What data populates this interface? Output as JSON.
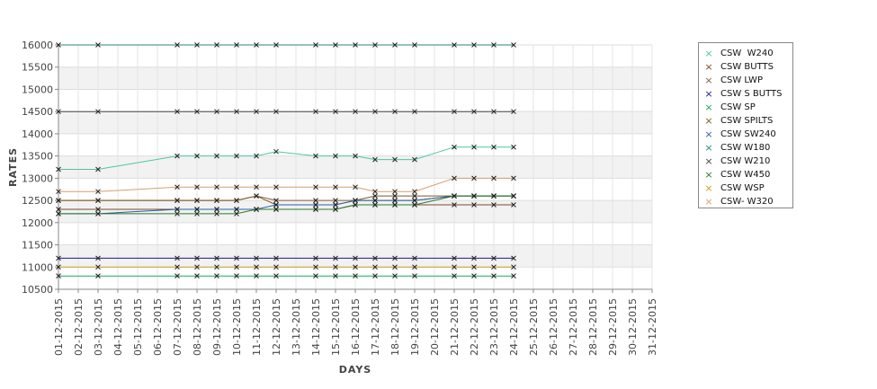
{
  "chart_data": {
    "type": "line",
    "xlabel": "DAYS",
    "ylabel": "RATES",
    "ylim": [
      10500,
      16000
    ],
    "yticks": [
      10500,
      11000,
      11500,
      12000,
      12500,
      13000,
      13500,
      14000,
      14500,
      15000,
      15500,
      16000
    ],
    "x": [
      "01-12-2015",
      "02-12-2015",
      "03-12-2015",
      "04-12-2015",
      "05-12-2015",
      "06-12-2015",
      "07-12-2015",
      "08-12-2015",
      "09-12-2015",
      "10-12-2015",
      "11-12-2015",
      "12-12-2015",
      "13-12-2015",
      "14-12-2015",
      "15-12-2015",
      "16-12-2015",
      "17-12-2015",
      "18-12-2015",
      "19-12-2015",
      "20-12-2015",
      "21-12-2015",
      "22-12-2015",
      "23-12-2015",
      "24-12-2015",
      "25-12-2015",
      "26-12-2015",
      "27-12-2015",
      "28-12-2015",
      "29-12-2015",
      "30-12-2015",
      "31-12-2015"
    ],
    "grid": true,
    "legend_position": "right",
    "series": [
      {
        "name": "CSW  W240",
        "color": "#4dc7a0",
        "x": [
          "01-12-2015",
          "03-12-2015",
          "07-12-2015",
          "08-12-2015",
          "09-12-2015",
          "10-12-2015",
          "11-12-2015",
          "12-12-2015",
          "14-12-2015",
          "15-12-2015",
          "16-12-2015",
          "17-12-2015",
          "18-12-2015",
          "19-12-2015",
          "21-12-2015",
          "22-12-2015",
          "23-12-2015",
          "24-12-2015"
        ],
        "values": [
          13200,
          13200,
          13500,
          13500,
          13500,
          13500,
          13500,
          13600,
          13500,
          13500,
          13500,
          13420,
          13420,
          13420,
          13700,
          13700,
          13700,
          13700
        ]
      },
      {
        "name": "CSW BUTTS",
        "color": "#7a4a2a",
        "x": [
          "01-12-2015",
          "03-12-2015",
          "07-12-2015",
          "08-12-2015",
          "09-12-2015",
          "10-12-2015",
          "11-12-2015",
          "12-12-2015",
          "14-12-2015",
          "15-12-2015",
          "16-12-2015",
          "17-12-2015",
          "18-12-2015",
          "19-12-2015",
          "21-12-2015",
          "22-12-2015",
          "23-12-2015",
          "24-12-2015"
        ],
        "values": [
          12300,
          12300,
          12300,
          12300,
          12300,
          12300,
          12300,
          12300,
          12300,
          12300,
          12400,
          12400,
          12400,
          12400,
          12400,
          12400,
          12400,
          12400
        ]
      },
      {
        "name": "CSW LWP",
        "color": "#8b5a3a",
        "x": [
          "01-12-2015",
          "03-12-2015",
          "07-12-2015",
          "08-12-2015",
          "09-12-2015",
          "10-12-2015",
          "11-12-2015",
          "12-12-2015",
          "14-12-2015",
          "15-12-2015",
          "16-12-2015",
          "17-12-2015",
          "18-12-2015",
          "19-12-2015",
          "21-12-2015",
          "22-12-2015",
          "23-12-2015",
          "24-12-2015"
        ],
        "values": [
          12500,
          12500,
          12500,
          12500,
          12500,
          12500,
          12600,
          12500,
          12500,
          12500,
          12500,
          12500,
          12500,
          12500,
          12600,
          12600,
          12600,
          12600
        ]
      },
      {
        "name": "CSW S BUTTS",
        "color": "#1a1a8a",
        "x": [
          "01-12-2015",
          "03-12-2015",
          "07-12-2015",
          "08-12-2015",
          "09-12-2015",
          "10-12-2015",
          "11-12-2015",
          "12-12-2015",
          "14-12-2015",
          "15-12-2015",
          "16-12-2015",
          "17-12-2015",
          "18-12-2015",
          "19-12-2015",
          "21-12-2015",
          "22-12-2015",
          "23-12-2015",
          "24-12-2015"
        ],
        "values": [
          11200,
          11200,
          11200,
          11200,
          11200,
          11200,
          11200,
          11200,
          11200,
          11200,
          11200,
          11200,
          11200,
          11200,
          11200,
          11200,
          11200,
          11200
        ]
      },
      {
        "name": "CSW SP",
        "color": "#1aaa5a",
        "x": [
          "01-12-2015",
          "03-12-2015",
          "07-12-2015",
          "08-12-2015",
          "09-12-2015",
          "10-12-2015",
          "11-12-2015",
          "12-12-2015",
          "14-12-2015",
          "15-12-2015",
          "16-12-2015",
          "17-12-2015",
          "18-12-2015",
          "19-12-2015",
          "21-12-2015",
          "22-12-2015",
          "23-12-2015",
          "24-12-2015"
        ],
        "values": [
          10800,
          10800,
          10800,
          10800,
          10800,
          10800,
          10800,
          10800,
          10800,
          10800,
          10800,
          10800,
          10800,
          10800,
          10800,
          10800,
          10800,
          10800
        ]
      },
      {
        "name": "CSW SPILTS",
        "color": "#7a5a20",
        "x": [
          "01-12-2015",
          "03-12-2015",
          "07-12-2015",
          "08-12-2015",
          "09-12-2015",
          "10-12-2015",
          "11-12-2015",
          "12-12-2015",
          "14-12-2015",
          "15-12-2015",
          "16-12-2015",
          "17-12-2015",
          "18-12-2015",
          "19-12-2015",
          "21-12-2015",
          "22-12-2015",
          "23-12-2015",
          "24-12-2015"
        ],
        "values": [
          12500,
          12500,
          12500,
          12500,
          12500,
          12500,
          12600,
          12400,
          12400,
          12400,
          12500,
          12600,
          12600,
          12600,
          12600,
          12600,
          12600,
          12600
        ]
      },
      {
        "name": "CSW SW240",
        "color": "#2a5fa8",
        "x": [
          "01-12-2015",
          "03-12-2015",
          "07-12-2015",
          "08-12-2015",
          "09-12-2015",
          "10-12-2015",
          "11-12-2015",
          "12-12-2015",
          "14-12-2015",
          "15-12-2015",
          "16-12-2015",
          "17-12-2015",
          "18-12-2015",
          "19-12-2015",
          "21-12-2015",
          "22-12-2015",
          "23-12-2015",
          "24-12-2015"
        ],
        "values": [
          12200,
          12200,
          12300,
          12300,
          12300,
          12300,
          12300,
          12400,
          12400,
          12400,
          12500,
          12500,
          12500,
          12500,
          12600,
          12600,
          12600,
          12600
        ]
      },
      {
        "name": "CSW W180",
        "color": "#2a8a6a",
        "x": [
          "01-12-2015",
          "03-12-2015",
          "07-12-2015",
          "08-12-2015",
          "09-12-2015",
          "10-12-2015",
          "11-12-2015",
          "12-12-2015",
          "14-12-2015",
          "15-12-2015",
          "16-12-2015",
          "17-12-2015",
          "18-12-2015",
          "19-12-2015",
          "21-12-2015",
          "22-12-2015",
          "23-12-2015",
          "24-12-2015"
        ],
        "values": [
          16000,
          16000,
          16000,
          16000,
          16000,
          16000,
          16000,
          16000,
          16000,
          16000,
          16000,
          16000,
          16000,
          16000,
          16000,
          16000,
          16000,
          16000
        ]
      },
      {
        "name": "CSW W210",
        "color": "#444444",
        "x": [
          "01-12-2015",
          "03-12-2015",
          "07-12-2015",
          "08-12-2015",
          "09-12-2015",
          "10-12-2015",
          "11-12-2015",
          "12-12-2015",
          "14-12-2015",
          "15-12-2015",
          "16-12-2015",
          "17-12-2015",
          "18-12-2015",
          "19-12-2015",
          "21-12-2015",
          "22-12-2015",
          "23-12-2015",
          "24-12-2015"
        ],
        "values": [
          14500,
          14500,
          14500,
          14500,
          14500,
          14500,
          14500,
          14500,
          14500,
          14500,
          14500,
          14500,
          14500,
          14500,
          14500,
          14500,
          14500,
          14500
        ]
      },
      {
        "name": "CSW W450",
        "color": "#2a7a2a",
        "x": [
          "01-12-2015",
          "03-12-2015",
          "07-12-2015",
          "08-12-2015",
          "09-12-2015",
          "10-12-2015",
          "11-12-2015",
          "12-12-2015",
          "14-12-2015",
          "15-12-2015",
          "16-12-2015",
          "17-12-2015",
          "18-12-2015",
          "19-12-2015",
          "21-12-2015",
          "22-12-2015",
          "23-12-2015",
          "24-12-2015"
        ],
        "values": [
          12200,
          12200,
          12200,
          12200,
          12200,
          12200,
          12300,
          12300,
          12300,
          12300,
          12400,
          12400,
          12400,
          12400,
          12600,
          12600,
          12600,
          12600
        ]
      },
      {
        "name": "CSW WSP",
        "color": "#c8a020",
        "x": [
          "01-12-2015",
          "03-12-2015",
          "07-12-2015",
          "08-12-2015",
          "09-12-2015",
          "10-12-2015",
          "11-12-2015",
          "12-12-2015",
          "14-12-2015",
          "15-12-2015",
          "16-12-2015",
          "17-12-2015",
          "18-12-2015",
          "19-12-2015",
          "21-12-2015",
          "22-12-2015",
          "23-12-2015",
          "24-12-2015"
        ],
        "values": [
          11000,
          11000,
          11000,
          11000,
          11000,
          11000,
          11000,
          11000,
          11000,
          11000,
          11000,
          11000,
          11000,
          11000,
          11000,
          11000,
          11000,
          11000
        ]
      },
      {
        "name": "CSW- W320",
        "color": "#d4a070",
        "x": [
          "01-12-2015",
          "03-12-2015",
          "07-12-2015",
          "08-12-2015",
          "09-12-2015",
          "10-12-2015",
          "11-12-2015",
          "12-12-2015",
          "14-12-2015",
          "15-12-2015",
          "16-12-2015",
          "17-12-2015",
          "18-12-2015",
          "19-12-2015",
          "21-12-2015",
          "22-12-2015",
          "23-12-2015",
          "24-12-2015"
        ],
        "values": [
          12700,
          12700,
          12800,
          12800,
          12800,
          12800,
          12800,
          12800,
          12800,
          12800,
          12800,
          12700,
          12700,
          12700,
          13000,
          13000,
          13000,
          13000
        ]
      }
    ]
  }
}
